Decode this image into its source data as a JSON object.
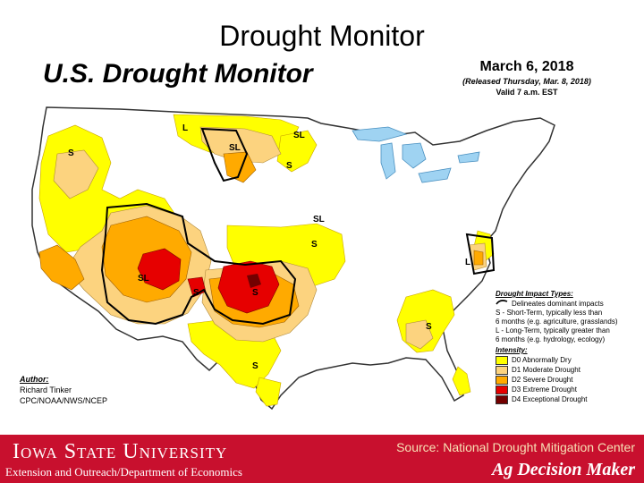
{
  "slide_title": "Drought Monitor",
  "map_title": "U.S. Drought Monitor",
  "date": {
    "main": "March 6, 2018",
    "released": "(Released Thursday, Mar. 8, 2018)",
    "valid": "Valid 7 a.m. EST"
  },
  "author": {
    "header": "Author:",
    "name": "Richard Tinker",
    "org": "CPC/NOAA/NWS/NCEP"
  },
  "impact_legend": {
    "header": "Drought Impact Types:",
    "delineates": "Delineates dominant impacts",
    "s_line1": "S - Short-Term, typically less than",
    "s_line2": "6 months (e.g. agriculture, grasslands)",
    "l_line1": "L - Long-Term, typically greater than",
    "l_line2": "6 months (e.g. hydrology, ecology)"
  },
  "intensity_legend": {
    "header": "Intensity:",
    "items": [
      {
        "label": "D0 Abnormally Dry",
        "color": "#ffff00"
      },
      {
        "label": "D1 Moderate Drought",
        "color": "#fcd37f"
      },
      {
        "label": "D2 Severe Drought",
        "color": "#ffaa00"
      },
      {
        "label": "D3 Extreme Drought",
        "color": "#e60000"
      },
      {
        "label": "D4 Exceptional Drought",
        "color": "#730000"
      }
    ]
  },
  "map_labels": {
    "s_northwest": "S",
    "l_montana": "L",
    "sl_dakota": "SL",
    "sl_minnesota": "SL",
    "s_minnesota": "S",
    "sl_nebraska": "SL",
    "s_kansas": "S",
    "sl_southwest": "SL",
    "s_newmexico": "S",
    "s_texas_north": "S",
    "s_texas_south": "S",
    "s_georgia": "S",
    "l_virginia": "L"
  },
  "footer": {
    "university": "Iowa State University",
    "source": "Source: National Drought Mitigation Center",
    "extension": "Extension and Outreach/Department of Economics",
    "brand": "Ag Decision Maker"
  }
}
